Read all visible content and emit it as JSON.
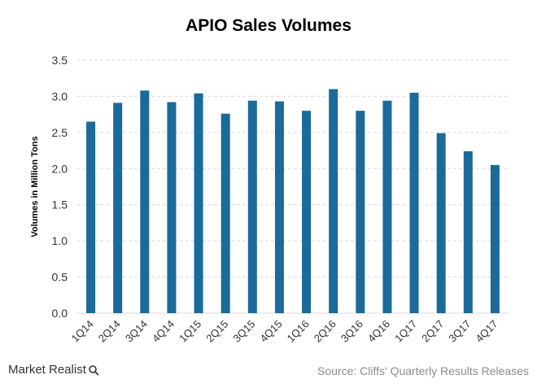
{
  "chart_data": {
    "type": "bar",
    "title": "APIO Sales Volumes",
    "xlabel": "",
    "ylabel": "Volumes in Million Tons",
    "categories": [
      "1Q14",
      "2Q14",
      "3Q14",
      "4Q14",
      "1Q15",
      "2Q15",
      "3Q15",
      "4Q15",
      "1Q16",
      "2Q16",
      "3Q16",
      "4Q16",
      "1Q17",
      "2Q17",
      "3Q17",
      "4Q17"
    ],
    "values": [
      2.65,
      2.91,
      3.08,
      2.92,
      3.04,
      2.76,
      2.94,
      2.93,
      2.8,
      3.1,
      2.8,
      2.94,
      3.05,
      2.49,
      2.24,
      2.05
    ],
    "ylim": [
      0,
      3.5
    ],
    "yticks": [
      "0.0",
      "0.5",
      "1.0",
      "1.5",
      "2.0",
      "2.5",
      "3.0",
      "3.5"
    ],
    "grid": true,
    "bar_color": "#1a6a9a"
  },
  "footer": {
    "brand": "Market Realist",
    "brand_icon": "magnifier-icon",
    "source": "Source: Cliffs' Quarterly Results Releases"
  }
}
